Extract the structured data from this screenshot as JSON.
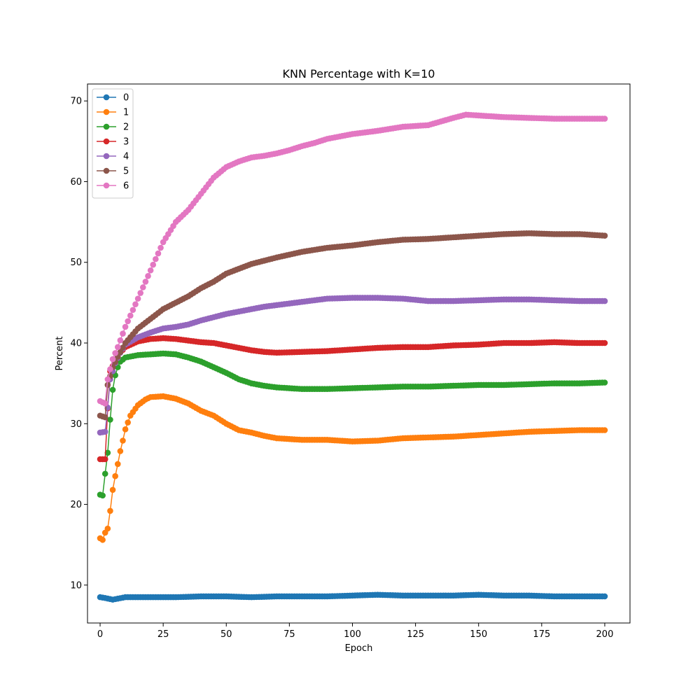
{
  "chart_data": {
    "type": "line",
    "title": "KNN Percentage with K=10",
    "xlabel": "Epoch",
    "ylabel": "Percent",
    "xlim": [
      -5,
      210
    ],
    "ylim": [
      5.3,
      72.1
    ],
    "xticks": [
      0,
      25,
      50,
      75,
      100,
      125,
      150,
      175,
      200
    ],
    "yticks": [
      10,
      20,
      30,
      40,
      50,
      60,
      70
    ],
    "grid": false,
    "legend_position": "upper-left",
    "series": [
      {
        "name": "0",
        "color": "#1f77b4",
        "keypoints": [
          [
            0,
            8.5
          ],
          [
            2,
            8.4
          ],
          [
            5,
            8.2
          ],
          [
            10,
            8.5
          ],
          [
            20,
            8.5
          ],
          [
            30,
            8.5
          ],
          [
            40,
            8.6
          ],
          [
            50,
            8.6
          ],
          [
            60,
            8.5
          ],
          [
            70,
            8.6
          ],
          [
            80,
            8.6
          ],
          [
            90,
            8.6
          ],
          [
            100,
            8.7
          ],
          [
            110,
            8.8
          ],
          [
            120,
            8.7
          ],
          [
            130,
            8.7
          ],
          [
            140,
            8.7
          ],
          [
            150,
            8.8
          ],
          [
            160,
            8.7
          ],
          [
            170,
            8.7
          ],
          [
            180,
            8.6
          ],
          [
            190,
            8.6
          ],
          [
            200,
            8.6
          ]
        ]
      },
      {
        "name": "1",
        "color": "#ff7f0e",
        "keypoints": [
          [
            0,
            15.8
          ],
          [
            1,
            15.6
          ],
          [
            2,
            16.5
          ],
          [
            3,
            17.0
          ],
          [
            4,
            19.2
          ],
          [
            5,
            21.8
          ],
          [
            6,
            23.5
          ],
          [
            7,
            25.0
          ],
          [
            8,
            26.6
          ],
          [
            9,
            27.9
          ],
          [
            10,
            29.3
          ],
          [
            12,
            31.0
          ],
          [
            15,
            32.3
          ],
          [
            18,
            33.0
          ],
          [
            20,
            33.3
          ],
          [
            25,
            33.4
          ],
          [
            30,
            33.1
          ],
          [
            35,
            32.5
          ],
          [
            40,
            31.6
          ],
          [
            45,
            31.0
          ],
          [
            50,
            30.0
          ],
          [
            55,
            29.2
          ],
          [
            60,
            28.9
          ],
          [
            65,
            28.5
          ],
          [
            70,
            28.2
          ],
          [
            80,
            28.0
          ],
          [
            90,
            28.0
          ],
          [
            100,
            27.8
          ],
          [
            110,
            27.9
          ],
          [
            120,
            28.2
          ],
          [
            130,
            28.3
          ],
          [
            140,
            28.4
          ],
          [
            150,
            28.6
          ],
          [
            160,
            28.8
          ],
          [
            170,
            29.0
          ],
          [
            180,
            29.1
          ],
          [
            190,
            29.2
          ],
          [
            200,
            29.2
          ]
        ]
      },
      {
        "name": "2",
        "color": "#2ca02c",
        "keypoints": [
          [
            0,
            21.2
          ],
          [
            1,
            21.1
          ],
          [
            2,
            23.8
          ],
          [
            3,
            26.4
          ],
          [
            4,
            30.5
          ],
          [
            5,
            34.2
          ],
          [
            6,
            36.0
          ],
          [
            7,
            37.0
          ],
          [
            8,
            37.7
          ],
          [
            10,
            38.2
          ],
          [
            15,
            38.5
          ],
          [
            20,
            38.6
          ],
          [
            25,
            38.7
          ],
          [
            30,
            38.6
          ],
          [
            35,
            38.2
          ],
          [
            40,
            37.7
          ],
          [
            45,
            37.0
          ],
          [
            50,
            36.3
          ],
          [
            55,
            35.5
          ],
          [
            60,
            35.0
          ],
          [
            65,
            34.7
          ],
          [
            70,
            34.5
          ],
          [
            80,
            34.3
          ],
          [
            90,
            34.3
          ],
          [
            100,
            34.4
          ],
          [
            110,
            34.5
          ],
          [
            120,
            34.6
          ],
          [
            130,
            34.6
          ],
          [
            140,
            34.7
          ],
          [
            150,
            34.8
          ],
          [
            160,
            34.8
          ],
          [
            170,
            34.9
          ],
          [
            180,
            35.0
          ],
          [
            190,
            35.0
          ],
          [
            200,
            35.1
          ]
        ]
      },
      {
        "name": "3",
        "color": "#d62728",
        "keypoints": [
          [
            0,
            25.6
          ],
          [
            2,
            25.6
          ],
          [
            3,
            31.9
          ],
          [
            4,
            36.5
          ],
          [
            6,
            37.8
          ],
          [
            8,
            38.8
          ],
          [
            10,
            39.5
          ],
          [
            15,
            40.2
          ],
          [
            20,
            40.5
          ],
          [
            25,
            40.6
          ],
          [
            30,
            40.5
          ],
          [
            35,
            40.3
          ],
          [
            40,
            40.1
          ],
          [
            45,
            40.0
          ],
          [
            50,
            39.7
          ],
          [
            55,
            39.4
          ],
          [
            60,
            39.1
          ],
          [
            65,
            38.9
          ],
          [
            70,
            38.8
          ],
          [
            80,
            38.9
          ],
          [
            90,
            39.0
          ],
          [
            100,
            39.2
          ],
          [
            110,
            39.4
          ],
          [
            120,
            39.5
          ],
          [
            130,
            39.5
          ],
          [
            140,
            39.7
          ],
          [
            150,
            39.8
          ],
          [
            160,
            40.0
          ],
          [
            170,
            40.0
          ],
          [
            180,
            40.1
          ],
          [
            190,
            40.0
          ],
          [
            200,
            40.0
          ]
        ]
      },
      {
        "name": "4",
        "color": "#9467bd",
        "keypoints": [
          [
            0,
            28.9
          ],
          [
            2,
            29.0
          ],
          [
            3,
            32.0
          ],
          [
            4,
            35.5
          ],
          [
            6,
            37.5
          ],
          [
            8,
            38.8
          ],
          [
            10,
            39.8
          ],
          [
            15,
            40.7
          ],
          [
            20,
            41.3
          ],
          [
            25,
            41.8
          ],
          [
            30,
            42.0
          ],
          [
            35,
            42.3
          ],
          [
            40,
            42.8
          ],
          [
            45,
            43.2
          ],
          [
            50,
            43.6
          ],
          [
            55,
            43.9
          ],
          [
            60,
            44.2
          ],
          [
            65,
            44.5
          ],
          [
            70,
            44.7
          ],
          [
            80,
            45.1
          ],
          [
            90,
            45.5
          ],
          [
            100,
            45.6
          ],
          [
            110,
            45.6
          ],
          [
            120,
            45.5
          ],
          [
            130,
            45.2
          ],
          [
            140,
            45.2
          ],
          [
            150,
            45.3
          ],
          [
            160,
            45.4
          ],
          [
            170,
            45.4
          ],
          [
            180,
            45.3
          ],
          [
            190,
            45.2
          ],
          [
            200,
            45.2
          ]
        ]
      },
      {
        "name": "5",
        "color": "#8c564b",
        "keypoints": [
          [
            0,
            31.0
          ],
          [
            2,
            30.8
          ],
          [
            3,
            34.8
          ],
          [
            5,
            37.0
          ],
          [
            7,
            38.3
          ],
          [
            10,
            40.0
          ],
          [
            15,
            41.8
          ],
          [
            20,
            43.0
          ],
          [
            25,
            44.2
          ],
          [
            30,
            45.0
          ],
          [
            35,
            45.8
          ],
          [
            40,
            46.8
          ],
          [
            45,
            47.6
          ],
          [
            50,
            48.6
          ],
          [
            55,
            49.2
          ],
          [
            60,
            49.8
          ],
          [
            65,
            50.2
          ],
          [
            70,
            50.6
          ],
          [
            80,
            51.3
          ],
          [
            90,
            51.8
          ],
          [
            100,
            52.1
          ],
          [
            110,
            52.5
          ],
          [
            120,
            52.8
          ],
          [
            130,
            52.9
          ],
          [
            140,
            53.1
          ],
          [
            150,
            53.3
          ],
          [
            160,
            53.5
          ],
          [
            170,
            53.6
          ],
          [
            180,
            53.5
          ],
          [
            190,
            53.5
          ],
          [
            200,
            53.3
          ]
        ]
      },
      {
        "name": "6",
        "color": "#e377c2",
        "keypoints": [
          [
            0,
            32.8
          ],
          [
            2,
            32.5
          ],
          [
            3,
            35.5
          ],
          [
            5,
            38.0
          ],
          [
            7,
            39.5
          ],
          [
            10,
            42.0
          ],
          [
            15,
            45.5
          ],
          [
            20,
            49.0
          ],
          [
            25,
            52.5
          ],
          [
            30,
            55.0
          ],
          [
            35,
            56.5
          ],
          [
            40,
            58.5
          ],
          [
            45,
            60.5
          ],
          [
            50,
            61.8
          ],
          [
            55,
            62.5
          ],
          [
            60,
            63.0
          ],
          [
            65,
            63.2
          ],
          [
            70,
            63.5
          ],
          [
            75,
            63.9
          ],
          [
            80,
            64.4
          ],
          [
            85,
            64.8
          ],
          [
            90,
            65.3
          ],
          [
            95,
            65.6
          ],
          [
            100,
            65.9
          ],
          [
            110,
            66.3
          ],
          [
            120,
            66.8
          ],
          [
            130,
            67.0
          ],
          [
            140,
            67.9
          ],
          [
            145,
            68.3
          ],
          [
            150,
            68.2
          ],
          [
            160,
            68.0
          ],
          [
            170,
            67.9
          ],
          [
            180,
            67.8
          ],
          [
            190,
            67.8
          ],
          [
            200,
            67.8
          ]
        ]
      }
    ]
  }
}
